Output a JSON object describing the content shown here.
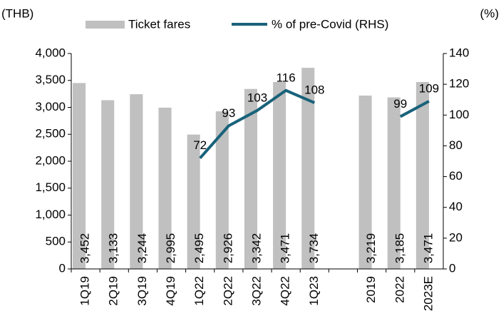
{
  "chart_data": {
    "type": "bar",
    "y_unit_label": "(THB)",
    "y2_unit_label": "(%)",
    "categories": [
      "1Q19",
      "2Q19",
      "3Q19",
      "4Q19",
      "1Q22",
      "2Q22",
      "3Q22",
      "4Q22",
      "1Q23",
      null,
      "2019",
      "2022",
      "2023E"
    ],
    "series": [
      {
        "name": "Ticket fares",
        "type": "bar",
        "color": "#c0c0c0",
        "values": [
          3452,
          3133,
          3244,
          2995,
          2495,
          2926,
          3342,
          3471,
          3734,
          null,
          3219,
          3185,
          3471
        ],
        "value_labels": [
          "3,452",
          "3,133",
          "3,244",
          "2,995",
          "2,495",
          "2,926",
          "3,342",
          "3,471",
          "3,734",
          null,
          "3,219",
          "3,185",
          "3,471"
        ]
      },
      {
        "name": "% of pre-Covid (RHS)",
        "type": "line",
        "axis": "y2",
        "color": "#19627a",
        "values": [
          null,
          null,
          null,
          null,
          72,
          93,
          103,
          116,
          108,
          null,
          null,
          99,
          109
        ]
      }
    ],
    "ylim": [
      0,
      4000
    ],
    "yticks": [
      0,
      500,
      {
        "value": 1000,
        "label": "1,000"
      },
      {
        "value": 1500,
        "label": "1,500"
      },
      {
        "value": 2000,
        "label": "2,000"
      },
      {
        "value": 2500,
        "label": "2,500"
      },
      {
        "value": 3000,
        "label": "3,000"
      },
      {
        "value": 3500,
        "label": "3,500"
      },
      {
        "value": 4000,
        "label": "4,000"
      }
    ],
    "y2lim": [
      0,
      140
    ],
    "y2ticks": [
      0,
      20,
      40,
      60,
      80,
      100,
      120,
      140
    ],
    "grid": false
  }
}
